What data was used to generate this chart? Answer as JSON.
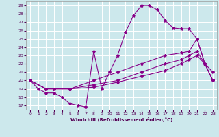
{
  "xlabel": "Windchill (Refroidissement éolien,°C)",
  "bg_color": "#cce8ec",
  "line_color": "#880088",
  "grid_color": "#ffffff",
  "xlim": [
    -0.5,
    23.5
  ],
  "ylim": [
    16.5,
    29.5
  ],
  "yticks": [
    17,
    18,
    19,
    20,
    21,
    22,
    23,
    24,
    25,
    26,
    27,
    28,
    29
  ],
  "xticks": [
    0,
    1,
    2,
    3,
    4,
    5,
    6,
    7,
    8,
    9,
    10,
    11,
    12,
    13,
    14,
    15,
    16,
    17,
    18,
    19,
    20,
    21,
    22,
    23
  ],
  "series": [
    {
      "x": [
        0,
        1,
        2,
        3,
        4,
        5,
        6,
        7,
        8,
        9,
        10,
        11,
        12,
        13,
        14,
        15,
        16,
        17,
        18,
        19,
        20,
        21,
        22,
        23
      ],
      "y": [
        20,
        19,
        18.5,
        18.5,
        18,
        17.2,
        17,
        16.8,
        23.5,
        19,
        21,
        23,
        25.8,
        27.8,
        29,
        29,
        28.5,
        27.2,
        26.3,
        26.2,
        26.2,
        25.0,
        22.0,
        21.0
      ]
    },
    {
      "x": [
        0,
        2,
        3,
        5,
        8,
        11,
        14,
        17,
        19,
        20,
        21,
        22,
        23
      ],
      "y": [
        20,
        19,
        19,
        19,
        20,
        21,
        22,
        23,
        23.3,
        23.5,
        25,
        22,
        20
      ]
    },
    {
      "x": [
        0,
        2,
        3,
        5,
        8,
        11,
        14,
        17,
        19,
        20,
        21,
        22,
        23
      ],
      "y": [
        20,
        19,
        19,
        19,
        19.5,
        20,
        21,
        22,
        22.5,
        23,
        23.5,
        22,
        20
      ]
    },
    {
      "x": [
        0,
        2,
        3,
        5,
        8,
        11,
        14,
        17,
        19,
        20,
        21,
        22,
        23
      ],
      "y": [
        20,
        19,
        19,
        19,
        19.2,
        19.8,
        20.5,
        21.2,
        22,
        22.5,
        23,
        22,
        20
      ]
    }
  ]
}
